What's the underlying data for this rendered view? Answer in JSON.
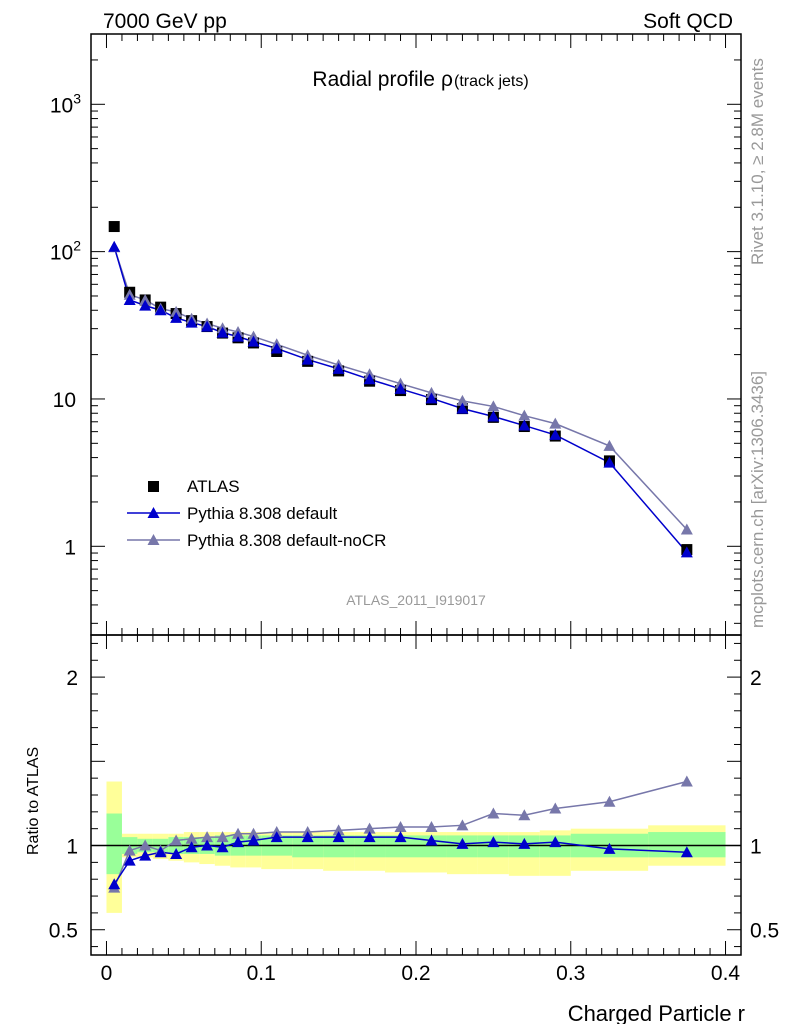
{
  "header": {
    "left": "7000 GeV pp",
    "right": "Soft QCD"
  },
  "side_labels": {
    "rivet": "Rivet 3.1.10, ≥ 2.8M events",
    "site": "mcplots.cern.ch [arXiv:1306.3436]"
  },
  "colors": {
    "atlas": "#000000",
    "default": "#0000cc",
    "nocr": "#7777aa",
    "band_inner": "#99ff99",
    "band_outer": "#ffff99"
  },
  "chart_data": [
    {
      "type": "line",
      "title": "Radial profile",
      "title_symbol": "ρ",
      "title_suffix": "(track jets)",
      "analysis_label": "ATLAS_2011_I919017",
      "yscale": "log",
      "xlim": [
        -0.01,
        0.41
      ],
      "ylim": [
        0.25,
        3000
      ],
      "yticks": [
        {
          "value": 1000,
          "base": "10",
          "exp": "3"
        },
        {
          "value": 100,
          "base": "10",
          "exp": "2"
        },
        {
          "value": 10,
          "base": "10",
          "exp": ""
        },
        {
          "value": 1,
          "base": "1",
          "exp": ""
        }
      ],
      "x": [
        0.005,
        0.015,
        0.025,
        0.035,
        0.045,
        0.055,
        0.065,
        0.075,
        0.085,
        0.095,
        0.11,
        0.13,
        0.15,
        0.17,
        0.19,
        0.21,
        0.23,
        0.25,
        0.27,
        0.29,
        0.325,
        0.375
      ],
      "series": [
        {
          "name": "ATLAS",
          "marker": "square",
          "values": [
            148,
            53,
            47,
            42,
            38,
            34,
            31,
            28,
            26,
            24,
            21,
            18,
            15.5,
            13.2,
            11.4,
            9.9,
            8.6,
            7.5,
            6.5,
            5.6,
            3.8,
            0.95
          ]
        },
        {
          "name": "Pythia 8.308 default",
          "marker": "triangle",
          "values": [
            108,
            47,
            43,
            40,
            35.5,
            33,
            31,
            28.2,
            26.5,
            24.5,
            22,
            18.5,
            16,
            13.6,
            11.7,
            10.1,
            8.6,
            7.6,
            6.6,
            5.7,
            3.7,
            0.91
          ]
        },
        {
          "name": "Pythia 8.308 default-noCR",
          "marker": "triangle",
          "values": [
            107,
            51,
            47,
            41,
            39,
            35,
            32.5,
            30.2,
            28.5,
            26.5,
            23.5,
            19.8,
            17,
            14.7,
            12.7,
            11,
            9.7,
            8.9,
            7.7,
            6.8,
            4.8,
            1.3
          ]
        }
      ]
    },
    {
      "type": "line",
      "ylabel": "Ratio to ATLAS",
      "xlabel": "Charged Particle r",
      "xlim": [
        -0.01,
        0.41
      ],
      "ylim": [
        0.35,
        2.25
      ],
      "yticks": [
        0.5,
        1,
        2
      ],
      "xticks": [
        0,
        0.1,
        0.2,
        0.3,
        0.4
      ],
      "reference": 1,
      "bin_edges": [
        0,
        0.01,
        0.02,
        0.03,
        0.04,
        0.05,
        0.06,
        0.07,
        0.08,
        0.09,
        0.1,
        0.12,
        0.14,
        0.16,
        0.18,
        0.2,
        0.22,
        0.24,
        0.26,
        0.28,
        0.3,
        0.35,
        0.4
      ],
      "band_inner": [
        [
          0.83,
          1.19
        ],
        [
          0.95,
          1.05
        ],
        [
          0.96,
          1.04
        ],
        [
          0.96,
          1.04
        ],
        [
          0.95,
          1.05
        ],
        [
          0.95,
          1.05
        ],
        [
          0.95,
          1.05
        ],
        [
          0.94,
          1.06
        ],
        [
          0.94,
          1.06
        ],
        [
          0.94,
          1.06
        ],
        [
          0.94,
          1.06
        ],
        [
          0.93,
          1.06
        ],
        [
          0.93,
          1.06
        ],
        [
          0.93,
          1.06
        ],
        [
          0.93,
          1.06
        ],
        [
          0.93,
          1.06
        ],
        [
          0.93,
          1.06
        ],
        [
          0.93,
          1.06
        ],
        [
          0.93,
          1.06
        ],
        [
          0.93,
          1.06
        ],
        [
          0.93,
          1.07
        ],
        [
          0.93,
          1.08
        ]
      ],
      "band_outer": [
        [
          0.6,
          1.38
        ],
        [
          0.93,
          1.07
        ],
        [
          0.93,
          1.07
        ],
        [
          0.92,
          1.07
        ],
        [
          0.91,
          1.07
        ],
        [
          0.9,
          1.08
        ],
        [
          0.89,
          1.08
        ],
        [
          0.88,
          1.08
        ],
        [
          0.87,
          1.08
        ],
        [
          0.87,
          1.08
        ],
        [
          0.86,
          1.08
        ],
        [
          0.86,
          1.08
        ],
        [
          0.85,
          1.08
        ],
        [
          0.85,
          1.08
        ],
        [
          0.84,
          1.08
        ],
        [
          0.84,
          1.08
        ],
        [
          0.83,
          1.08
        ],
        [
          0.83,
          1.08
        ],
        [
          0.82,
          1.08
        ],
        [
          0.82,
          1.09
        ],
        [
          0.85,
          1.1
        ],
        [
          0.88,
          1.12
        ]
      ],
      "series": [
        {
          "name": "Pythia 8.308 default",
          "marker": "triangle",
          "values": [
            0.77,
            0.91,
            0.94,
            0.96,
            0.95,
            0.99,
            1.0,
            0.99,
            1.02,
            1.03,
            1.05,
            1.05,
            1.05,
            1.05,
            1.05,
            1.03,
            1.01,
            1.02,
            1.01,
            1.02,
            0.98,
            0.96
          ]
        },
        {
          "name": "Pythia 8.308 default-noCR",
          "marker": "triangle",
          "values": [
            0.75,
            0.97,
            1.0,
            0.97,
            1.03,
            1.04,
            1.05,
            1.05,
            1.07,
            1.07,
            1.08,
            1.08,
            1.09,
            1.1,
            1.11,
            1.11,
            1.12,
            1.19,
            1.18,
            1.22,
            1.26,
            1.38
          ]
        }
      ]
    }
  ]
}
